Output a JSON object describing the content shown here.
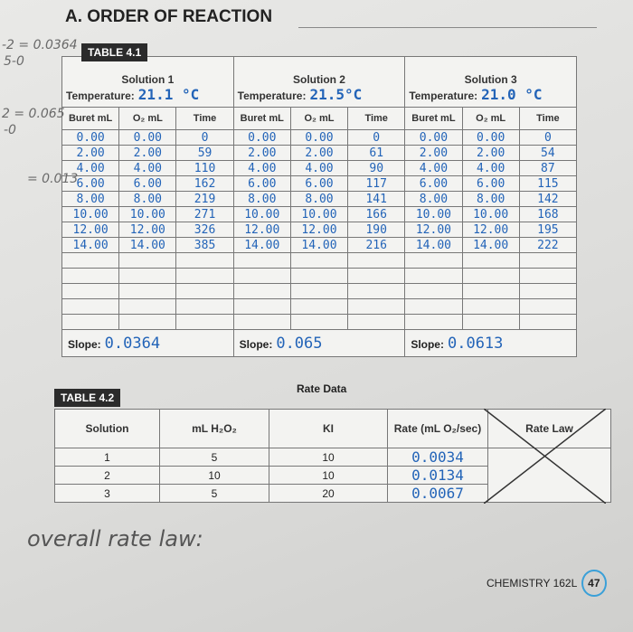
{
  "header": {
    "title": "A. ORDER OF REACTION"
  },
  "margin_notes": [
    "-2 = 0.0364",
    "5-0",
    "2 = 0.065",
    "-0",
    "= 0.013"
  ],
  "table1": {
    "caption": "TABLE 4.1",
    "temperature_label": "Temperature:",
    "columns": [
      "Buret mL",
      "O₂ mL",
      "Time"
    ],
    "slope_label": "Slope:",
    "solutions": [
      {
        "name": "Solution 1",
        "temperature": "21.1 °C",
        "slope": "0.0364",
        "rows": [
          [
            "0.00",
            "0.00",
            "0"
          ],
          [
            "2.00",
            "2.00",
            "59"
          ],
          [
            "4.00",
            "4.00",
            "110"
          ],
          [
            "6.00",
            "6.00",
            "162"
          ],
          [
            "8.00",
            "8.00",
            "219"
          ],
          [
            "10.00",
            "10.00",
            "271"
          ],
          [
            "12.00",
            "12.00",
            "326"
          ],
          [
            "14.00",
            "14.00",
            "385"
          ]
        ]
      },
      {
        "name": "Solution 2",
        "temperature": "21.5°C",
        "slope": "0.065",
        "rows": [
          [
            "0.00",
            "0.00",
            "0"
          ],
          [
            "2.00",
            "2.00",
            "61"
          ],
          [
            "4.00",
            "4.00",
            "90"
          ],
          [
            "6.00",
            "6.00",
            "117"
          ],
          [
            "8.00",
            "8.00",
            "141"
          ],
          [
            "10.00",
            "10.00",
            "166"
          ],
          [
            "12.00",
            "12.00",
            "190"
          ],
          [
            "14.00",
            "14.00",
            "216"
          ]
        ]
      },
      {
        "name": "Solution 3",
        "temperature": "21.0 °C",
        "slope": "0.0613",
        "rows": [
          [
            "0.00",
            "0.00",
            "0"
          ],
          [
            "2.00",
            "2.00",
            "54"
          ],
          [
            "4.00",
            "4.00",
            "87"
          ],
          [
            "6.00",
            "6.00",
            "115"
          ],
          [
            "8.00",
            "8.00",
            "142"
          ],
          [
            "10.00",
            "10.00",
            "168"
          ],
          [
            "12.00",
            "12.00",
            "195"
          ],
          [
            "14.00",
            "14.00",
            "222"
          ]
        ]
      }
    ]
  },
  "table2": {
    "caption": "TABLE 4.2",
    "title": "Rate Data",
    "columns": [
      "Solution",
      "mL H₂O₂",
      "KI",
      "Rate (mL O₂/sec)",
      "Rate Law"
    ],
    "rows": [
      [
        "1",
        "5",
        "10",
        "0.0034"
      ],
      [
        "2",
        "10",
        "10",
        "0.0134"
      ],
      [
        "3",
        "5",
        "20",
        "0.0067"
      ]
    ]
  },
  "handwritten_note": "overall rate law:",
  "footer": {
    "course": "CHEMISTRY 162L",
    "page": "47"
  }
}
